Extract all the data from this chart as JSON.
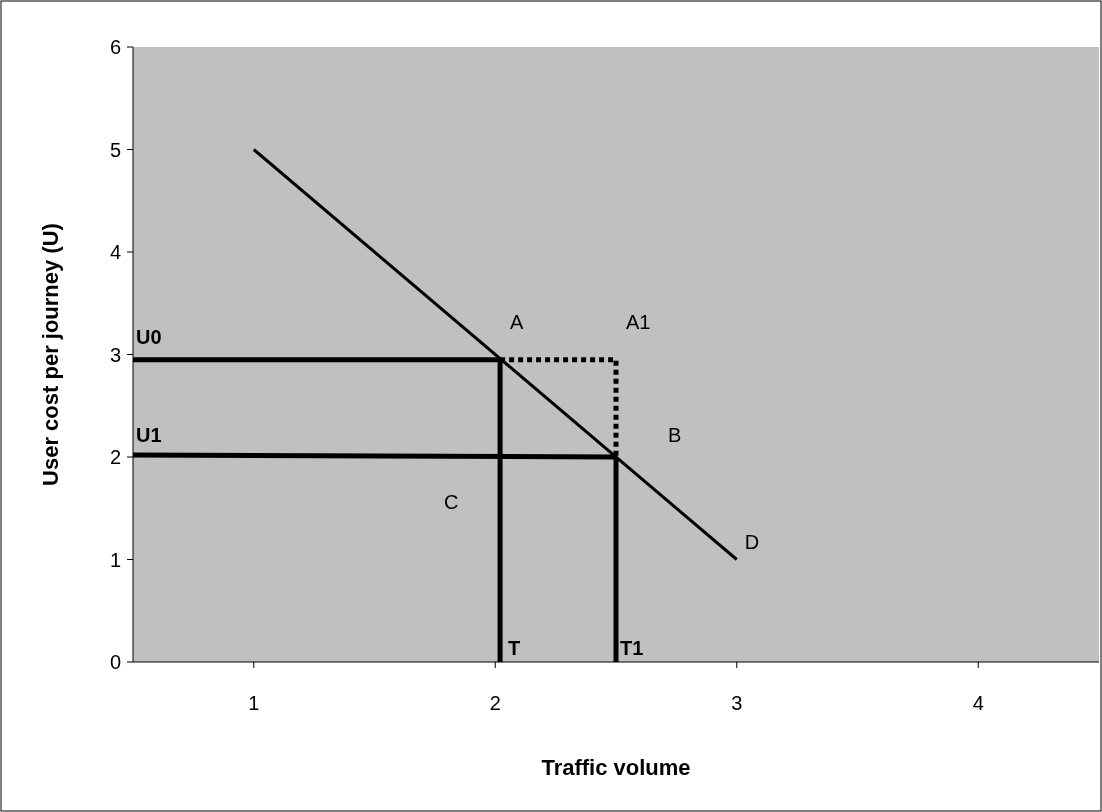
{
  "chart_data": {
    "type": "line",
    "xlabel": "Traffic volume",
    "ylabel": "User cost per journey (U)",
    "xlim": [
      0.5,
      4.5
    ],
    "xticks": [
      1,
      2,
      3,
      4
    ],
    "ylim": [
      0,
      6
    ],
    "yticks": [
      0,
      1,
      2,
      3,
      4,
      5,
      6
    ],
    "grid": false,
    "marker": "none",
    "series": [
      {
        "color": "#000000",
        "x": [
          1,
          3
        ],
        "values": [
          5,
          1
        ]
      },
      {
        "color": "#000000",
        "x": [
          0.5,
          2.02
        ],
        "values": [
          2.95,
          2.95
        ]
      },
      {
        "color": "#000000",
        "x": [
          2.02,
          2.02
        ],
        "values": [
          0,
          2.95
        ]
      },
      {
        "color": "#000000",
        "x": [
          0.5,
          2.5
        ],
        "values": [
          2.02,
          2.0
        ]
      },
      {
        "color": "#000000",
        "x": [
          2.5,
          2.5
        ],
        "values": [
          0,
          2.0
        ]
      },
      {
        "color": "#000000",
        "x": [
          2.02,
          2.5,
          2.5
        ],
        "values": [
          2.95,
          2.95,
          2.0
        ],
        "line_style": "dotted"
      }
    ],
    "annotations": [
      {
        "text": "A",
        "x": 2.02,
        "y": 2.95
      },
      {
        "text": "A1",
        "x": 2.5,
        "y": 2.95
      },
      {
        "text": "B",
        "x": 2.5,
        "y": 2.0
      },
      {
        "text": "C",
        "x": 2.02,
        "y": 2.0
      },
      {
        "text": "D",
        "x": 3,
        "y": 1
      },
      {
        "text": "U0",
        "x": 0.5,
        "y": 2.95
      },
      {
        "text": "U1",
        "x": 0.5,
        "y": 2.02
      },
      {
        "text": "T",
        "x": 2.02,
        "y": 0
      },
      {
        "text": "T1",
        "x": 2.5,
        "y": 0
      }
    ]
  }
}
